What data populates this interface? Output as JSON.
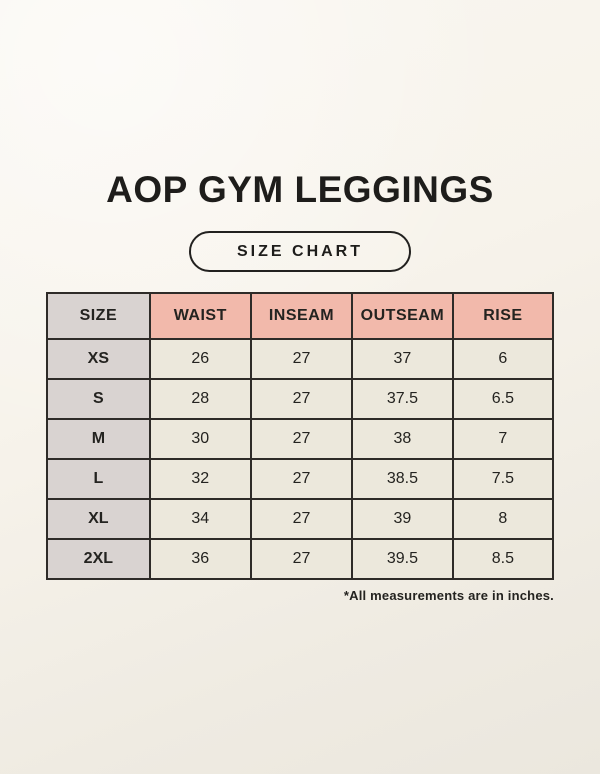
{
  "page": {
    "title": "AOP GYM LEGGINGS",
    "badge_label": "SIZE CHART",
    "footnote": "*All measurements are in inches."
  },
  "chart_data": {
    "type": "table",
    "title": "AOP GYM LEGGINGS",
    "subtitle": "SIZE CHART",
    "columns": [
      "SIZE",
      "WAIST",
      "INSEAM",
      "OUTSEAM",
      "RISE"
    ],
    "rows": [
      [
        "XS",
        "26",
        "27",
        "37",
        "6"
      ],
      [
        "S",
        "28",
        "27",
        "37.5",
        "6.5"
      ],
      [
        "M",
        "30",
        "27",
        "38",
        "7"
      ],
      [
        "L",
        "32",
        "27",
        "38.5",
        "7.5"
      ],
      [
        "XL",
        "34",
        "27",
        "39",
        "8"
      ],
      [
        "2XL",
        "36",
        "27",
        "39.5",
        "8.5"
      ]
    ],
    "units": "inches",
    "footnote": "*All measurements are in inches.",
    "layout_hints": {
      "header_fill": "#f2b9ab",
      "size_column_fill": "#d9d3d1",
      "cell_fill": "#ece8dc",
      "border_color": "#2e2b28",
      "background_color": "#f7f3eb",
      "text_color": "#242320"
    }
  }
}
